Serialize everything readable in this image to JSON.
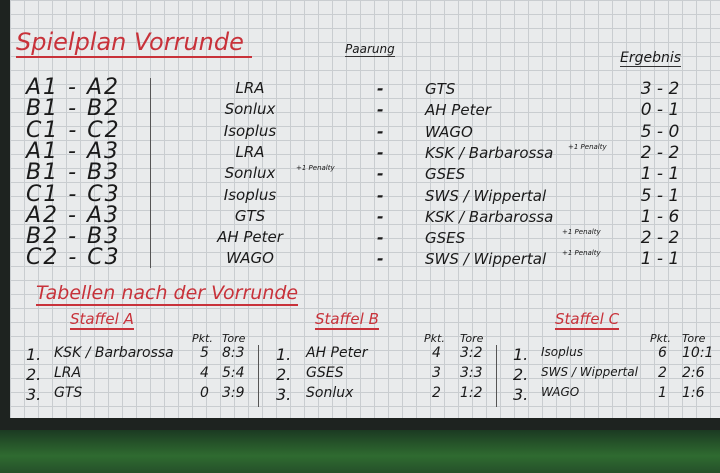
{
  "title": "Spielplan Vorrunde",
  "col_pairing": "Paarung",
  "col_result": "Ergebnis",
  "matches": [
    {
      "code": "A1 - A2",
      "home": "LRA",
      "away": "GTS",
      "score": "3 - 2",
      "note": ""
    },
    {
      "code": "B1 - B2",
      "home": "Sonlux",
      "away": "AH Peter",
      "score": "0 - 1",
      "note": ""
    },
    {
      "code": "C1 - C2",
      "home": "Isoplus",
      "away": "WAGO",
      "score": "5 - 0",
      "note": ""
    },
    {
      "code": "A1 - A3",
      "home": "LRA",
      "away": "KSK / Barbarossa",
      "score": "2 - 2",
      "note": "+1 Penalty"
    },
    {
      "code": "B1 - B3",
      "home": "Sonlux",
      "away": "GSES",
      "score": "1 - 1",
      "note": "+1 Penalty"
    },
    {
      "code": "C1 - C3",
      "home": "Isoplus",
      "away": "SWS / Wippertal",
      "score": "5 - 1",
      "note": ""
    },
    {
      "code": "A2 - A3",
      "home": "GTS",
      "away": "KSK / Barbarossa",
      "score": "1 - 6",
      "note": ""
    },
    {
      "code": "B2 - B3",
      "home": "AH Peter",
      "away": "GSES",
      "score": "2 - 2",
      "note": "+1 Penalty"
    },
    {
      "code": "C2 - C3",
      "home": "WAGO",
      "away": "SWS / Wippertal",
      "score": "1 - 1",
      "note": "+1 Penalty"
    }
  ],
  "dash": "-",
  "tables_title": "Tabellen nach der Vorrunde",
  "header_pts": "Pkt.",
  "header_goals": "Tore",
  "groups": [
    {
      "name": "Staffel A",
      "rows": [
        {
          "rank": "1.",
          "team": "KSK / Barbarossa",
          "pts": "5",
          "goals": "8:3"
        },
        {
          "rank": "2.",
          "team": "LRA",
          "pts": "4",
          "goals": "5:4"
        },
        {
          "rank": "3.",
          "team": "GTS",
          "pts": "0",
          "goals": "3:9"
        }
      ]
    },
    {
      "name": "Staffel B",
      "rows": [
        {
          "rank": "1.",
          "team": "AH Peter",
          "pts": "4",
          "goals": "3:2"
        },
        {
          "rank": "2.",
          "team": "GSES",
          "pts": "3",
          "goals": "3:3"
        },
        {
          "rank": "3.",
          "team": "Sonlux",
          "pts": "2",
          "goals": "1:2"
        }
      ]
    },
    {
      "name": "Staffel C",
      "rows": [
        {
          "rank": "1.",
          "team": "Isoplus",
          "pts": "6",
          "goals": "10:1"
        },
        {
          "rank": "2.",
          "team": "SWS / Wippertal",
          "pts": "2",
          "goals": "2:6"
        },
        {
          "rank": "3.",
          "team": "WAGO",
          "pts": "1",
          "goals": "1:6"
        }
      ]
    }
  ]
}
